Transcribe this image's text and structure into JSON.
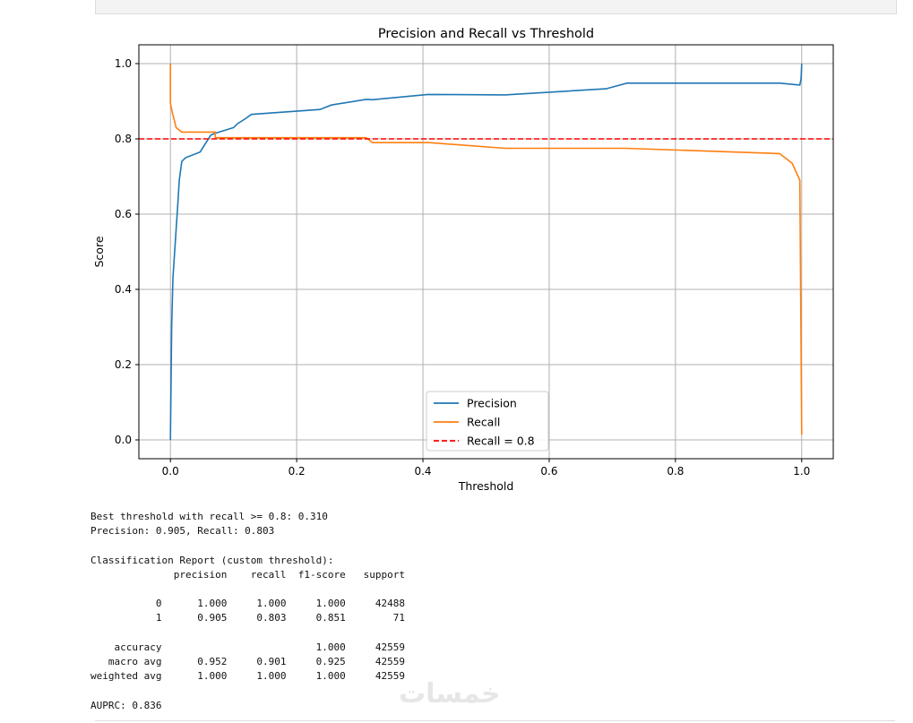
{
  "chart_data": {
    "type": "line",
    "title": "Precision and Recall vs Threshold",
    "xlabel": "Threshold",
    "ylabel": "Score",
    "xlim": [
      -0.05,
      1.05
    ],
    "ylim": [
      -0.05,
      1.05
    ],
    "xticks": [
      "0.0",
      "0.2",
      "0.4",
      "0.6",
      "0.8",
      "1.0"
    ],
    "yticks": [
      "0.0",
      "0.2",
      "0.4",
      "0.6",
      "0.8",
      "1.0"
    ],
    "grid": true,
    "legend_placement": "lower-center",
    "series": [
      {
        "name": "Precision",
        "color": "#1f77b4",
        "x": [
          0,
          0.002,
          0.004,
          0.007,
          0.011,
          0.014,
          0.018,
          0.024,
          0.047,
          0.064,
          0.071,
          0.1,
          0.106,
          0.12,
          0.128,
          0.237,
          0.255,
          0.31,
          0.32,
          0.408,
          0.53,
          0.69,
          0.723,
          0.965,
          0.997,
          0.999,
          1.0
        ],
        "y": [
          0,
          0.3,
          0.43,
          0.51,
          0.61,
          0.69,
          0.74,
          0.75,
          0.765,
          0.81,
          0.815,
          0.83,
          0.84,
          0.855,
          0.865,
          0.878,
          0.89,
          0.905,
          0.904,
          0.918,
          0.917,
          0.933,
          0.948,
          0.948,
          0.943,
          0.96,
          1.0
        ]
      },
      {
        "name": "Recall",
        "color": "#ff7f0e",
        "x": [
          0,
          0,
          0.003,
          0.006,
          0.009,
          0.018,
          0.071,
          0.071,
          0.31,
          0.32,
          0.41,
          0.53,
          0.72,
          0.965,
          0.985,
          0.997,
          1.0
        ],
        "y": [
          1.0,
          0.895,
          0.87,
          0.85,
          0.83,
          0.818,
          0.818,
          0.803,
          0.803,
          0.79,
          0.79,
          0.775,
          0.775,
          0.761,
          0.735,
          0.69,
          0.014
        ]
      }
    ],
    "hline": {
      "name": "Recall = 0.8",
      "value": 0.8,
      "color": "#ff0000"
    }
  },
  "output": {
    "lines": [
      "Best threshold with recall >= 0.8: 0.310",
      "Precision: 0.905, Recall: 0.803",
      "",
      "Classification Report (custom threshold):",
      "              precision    recall  f1-score   support",
      "",
      "           0      1.000     1.000     1.000     42488",
      "           1      0.905     0.803     0.851        71",
      "",
      "    accuracy                          1.000     42559",
      "   macro avg      0.952     0.901     0.925     42559",
      "weighted avg      1.000     1.000     1.000     42559",
      "",
      "AUPRC: 0.836"
    ]
  },
  "watermark": "خمسات"
}
